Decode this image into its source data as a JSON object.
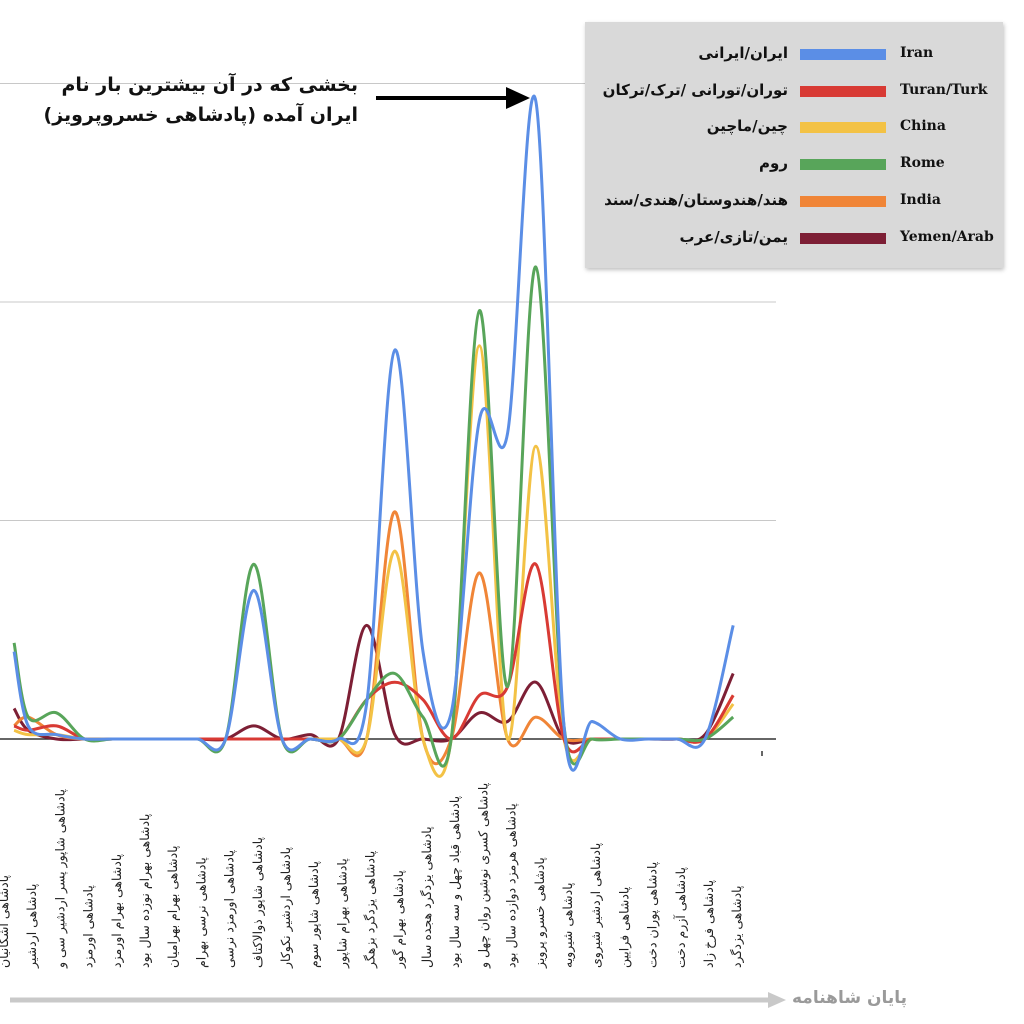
{
  "chart_data": {
    "type": "line",
    "title": "",
    "xlabel": "",
    "ylabel": "",
    "ylim": [
      0,
      100
    ],
    "grid": true,
    "legend_position": "top-right",
    "x_axis_caption": "پایان شاهنامه",
    "annotation": {
      "text_line1": "بخشی که در آن بیشترین بار نام",
      "text_line2": "ایران آمده (پادشاهی خسروپرویز)"
    },
    "categories": [
      "پادشاهی اشکانیان",
      "پادشاهی اردشیر",
      "پادشاهی شاپور پسر اردشیر سی و",
      "پادشاهی اورمزد",
      "پادشاهی بهرام اورمزد",
      "پادشاهی بهرام نوزده سال بود",
      "پادشاهی بهرام بهرامیان",
      "پادشاهی نرسی بهرام",
      "پادشاهی اورمزد نرسی",
      "پادشاهی شاپور ذوالاکتاف",
      "پادشاهی اردشیر نکوکار",
      "پادشاهی شاپور سوم",
      "پادشاهی بهرام شاپور",
      "پادشاهی یزدگرد بزهگر",
      "پادشاهی بهرام گور",
      "پادشاهی یزدگرد هجده سال",
      "پادشاهی قباد چهل و سه سال بود",
      "پادشاهی کسری نوشین روان چهل و",
      "پادشاهی هرمزد دوازده سال بود",
      "پادشاهی خسرو پرویز",
      "پادشاهی شیرویه",
      "پادشاهی اردشیر شیروی",
      "پادشاهی فرایین",
      "پادشاهی پوران دخت",
      "پادشاهی آزرم دخت",
      "پادشاهی فرخ زاد",
      "پادشاهی یزدگرد"
    ],
    "series": [
      {
        "name": "Iran",
        "label_fa": "ایران/ایرانی",
        "color": "#5b8ee6",
        "points": [
          [
            0.5,
            20
          ],
          [
            1,
            3
          ],
          [
            2,
            1
          ],
          [
            3,
            0
          ],
          [
            4,
            0
          ],
          [
            5,
            0
          ],
          [
            6,
            0
          ],
          [
            7,
            0
          ],
          [
            8,
            0
          ],
          [
            9,
            34
          ],
          [
            10,
            0
          ],
          [
            11,
            0
          ],
          [
            12,
            0
          ],
          [
            13,
            8
          ],
          [
            14,
            89
          ],
          [
            15,
            20
          ],
          [
            16,
            6
          ],
          [
            17,
            73
          ],
          [
            18,
            70
          ],
          [
            19,
            146
          ],
          [
            20,
            3
          ],
          [
            21,
            4
          ],
          [
            22,
            0
          ],
          [
            23,
            0
          ],
          [
            24,
            0
          ],
          [
            25,
            0
          ],
          [
            26,
            26
          ]
        ]
      },
      {
        "name": "Turan/Turk",
        "label_fa": "توران/تورانی /ترک/ترکان",
        "color": "#d83a34",
        "points": [
          [
            0.5,
            3
          ],
          [
            1,
            2
          ],
          [
            2,
            3
          ],
          [
            3,
            0
          ],
          [
            4,
            0
          ],
          [
            5,
            0
          ],
          [
            6,
            0
          ],
          [
            7,
            0
          ],
          [
            8,
            0
          ],
          [
            9,
            0
          ],
          [
            10,
            0
          ],
          [
            11,
            0
          ],
          [
            12,
            0
          ],
          [
            13,
            9
          ],
          [
            14,
            13
          ],
          [
            15,
            9
          ],
          [
            16,
            0
          ],
          [
            17,
            10
          ],
          [
            18,
            12
          ],
          [
            19,
            40
          ],
          [
            20,
            0
          ],
          [
            21,
            0
          ],
          [
            22,
            0
          ],
          [
            23,
            0
          ],
          [
            24,
            0
          ],
          [
            25,
            0
          ],
          [
            26,
            10
          ]
        ]
      },
      {
        "name": "China",
        "label_fa": "چین/ماچین",
        "color": "#f3c245",
        "points": [
          [
            0.5,
            2
          ],
          [
            1,
            1
          ],
          [
            2,
            1
          ],
          [
            3,
            0
          ],
          [
            4,
            0
          ],
          [
            5,
            0
          ],
          [
            6,
            0
          ],
          [
            7,
            0
          ],
          [
            8,
            0
          ],
          [
            9,
            0
          ],
          [
            10,
            0
          ],
          [
            11,
            0
          ],
          [
            12,
            0
          ],
          [
            13,
            0
          ],
          [
            14,
            43
          ],
          [
            15,
            0
          ],
          [
            16,
            0
          ],
          [
            17,
            90
          ],
          [
            18,
            0
          ],
          [
            19,
            67
          ],
          [
            20,
            0
          ],
          [
            21,
            0
          ],
          [
            22,
            0
          ],
          [
            23,
            0
          ],
          [
            24,
            0
          ],
          [
            25,
            0
          ],
          [
            26,
            8
          ]
        ]
      },
      {
        "name": "Rome",
        "label_fa": "روم",
        "color": "#58a55a",
        "points": [
          [
            0.5,
            22
          ],
          [
            1,
            5
          ],
          [
            2,
            6
          ],
          [
            3,
            0
          ],
          [
            4,
            0
          ],
          [
            5,
            0
          ],
          [
            6,
            0
          ],
          [
            7,
            0
          ],
          [
            8,
            0
          ],
          [
            9,
            40
          ],
          [
            10,
            0
          ],
          [
            11,
            0
          ],
          [
            12,
            0
          ],
          [
            13,
            9
          ],
          [
            14,
            15
          ],
          [
            15,
            5
          ],
          [
            16,
            0
          ],
          [
            17,
            98
          ],
          [
            18,
            12
          ],
          [
            19,
            108
          ],
          [
            20,
            3
          ],
          [
            21,
            0
          ],
          [
            22,
            0
          ],
          [
            23,
            0
          ],
          [
            24,
            0
          ],
          [
            25,
            0
          ],
          [
            26,
            5
          ]
        ]
      },
      {
        "name": "India",
        "label_fa": "هند/هندوستان/هندی/سند",
        "color": "#f08537",
        "points": [
          [
            0.5,
            3
          ],
          [
            1,
            5
          ],
          [
            2,
            1
          ],
          [
            3,
            0
          ],
          [
            4,
            0
          ],
          [
            5,
            0
          ],
          [
            6,
            0
          ],
          [
            7,
            0
          ],
          [
            8,
            0
          ],
          [
            9,
            0
          ],
          [
            10,
            0
          ],
          [
            11,
            0
          ],
          [
            12,
            0
          ],
          [
            13,
            0
          ],
          [
            14,
            52
          ],
          [
            15,
            0
          ],
          [
            16,
            0
          ],
          [
            17,
            38
          ],
          [
            18,
            0
          ],
          [
            19,
            5
          ],
          [
            20,
            0
          ],
          [
            21,
            0
          ],
          [
            22,
            0
          ],
          [
            23,
            0
          ],
          [
            24,
            0
          ],
          [
            25,
            0
          ],
          [
            26,
            10
          ]
        ]
      },
      {
        "name": "Yemen/Arab",
        "label_fa": "یمن/تازی/عرب",
        "color": "#7d1f35",
        "points": [
          [
            0.5,
            7
          ],
          [
            1,
            2
          ],
          [
            2,
            0
          ],
          [
            3,
            0
          ],
          [
            4,
            0
          ],
          [
            5,
            0
          ],
          [
            6,
            0
          ],
          [
            7,
            0
          ],
          [
            8,
            0
          ],
          [
            9,
            3
          ],
          [
            10,
            0
          ],
          [
            11,
            1
          ],
          [
            12,
            0
          ],
          [
            13,
            26
          ],
          [
            14,
            1
          ],
          [
            15,
            0
          ],
          [
            16,
            0
          ],
          [
            17,
            6
          ],
          [
            18,
            4
          ],
          [
            19,
            13
          ],
          [
            20,
            0
          ],
          [
            21,
            0
          ],
          [
            22,
            0
          ],
          [
            23,
            0
          ],
          [
            24,
            0
          ],
          [
            25,
            1
          ],
          [
            26,
            15
          ]
        ]
      }
    ]
  }
}
